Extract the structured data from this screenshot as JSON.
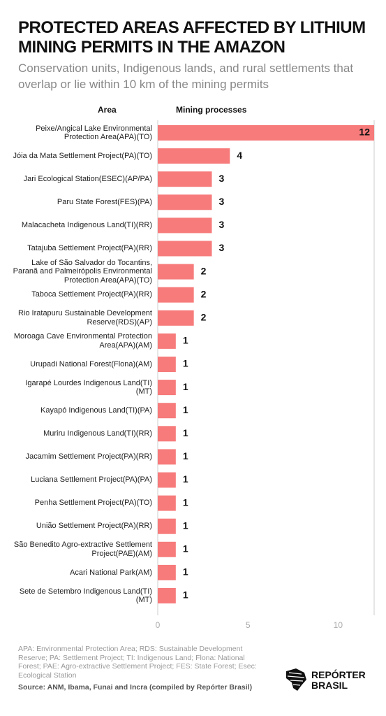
{
  "chart_data": {
    "type": "barh",
    "title": "PROTECTED AREAS AFFECTED BY LITHIUM MINING PERMITS IN THE AMAZON",
    "subtitle": "Conservation units, Indigenous lands, and rural settlements that overlap or lie within 10 km of the mining permits",
    "y_label": "Area",
    "x_label": "Mining processes",
    "categories": [
      "Peixe/Angical Lake Environmental Protection Area(APA)(TO)",
      "Jóia da Mata Settlement Project(PA)(TO)",
      "Jari Ecological Station(ESEC)(AP/PA)",
      "Paru State Forest(FES)(PA)",
      "Malacacheta Indigenous Land(TI)(RR)",
      "Tatajuba Settlement Project(PA)(RR)",
      "Lake of São Salvador do Tocantins, Paranã and Palmeirópolis Environmental Protection Area(APA)(TO)",
      "Taboca Settlement Project(PA)(RR)",
      "Rio Iratapuru Sustainable Development Reserve(RDS)(AP)",
      "Moroaga Cave Environmental Protection Area(APA)(AM)",
      "Urupadi National Forest(Flona)(AM)",
      "Igarapé Lourdes Indigenous Land(TI)(MT)",
      "Kayapó Indigenous Land(TI)(PA)",
      "Muriru Indigenous Land(TI)(RR)",
      "Jacamim Settlement Project(PA)(RR)",
      "Luciana Settlement Project(PA)(PA)",
      "Penha Settlement Project(PA)(TO)",
      "União Settlement Project(PA)(RR)",
      "São Benedito Agro-extractive Settlement Project(PAE)(AM)",
      "Acari National Park(AM)",
      "Sete de Setembro Indigenous Land(TI)(MT)"
    ],
    "values": [
      12,
      4,
      3,
      3,
      3,
      3,
      2,
      2,
      2,
      1,
      1,
      1,
      1,
      1,
      1,
      1,
      1,
      1,
      1,
      1,
      1
    ],
    "color": "#f77b7b",
    "xlim": [
      0,
      12
    ],
    "xticks": [
      0,
      5,
      10
    ],
    "footnote": "APA: Environmental Protection Area; RDS: Sustainable Development Reserve; PA: Settlement Project; TI: Indigenous Land; Flona: National Forest; PAE: Agro-extractive Settlement Project; FES: State Forest; Esec: Ecological Station",
    "source": "Source: ANM, Ibama, Funai and Incra (compiled by Repórter Brasil)"
  },
  "logo": {
    "line1": "REPÓRTER",
    "line2": "BRASIL"
  }
}
